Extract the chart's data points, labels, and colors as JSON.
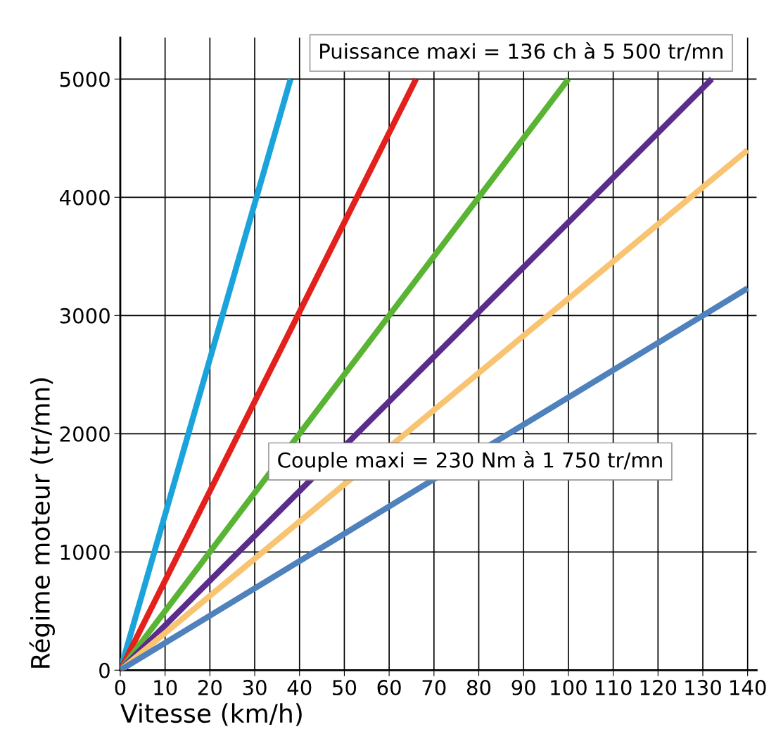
{
  "chart_data": {
    "type": "line",
    "xlabel": "Vitesse (km/h)",
    "ylabel": "Régime moteur (tr/mn)",
    "series": [
      {
        "color": "#1ba3dc",
        "x": [
          0,
          38
        ],
        "values": [
          0,
          5000
        ]
      },
      {
        "color": "#e3201b",
        "x": [
          0,
          66
        ],
        "values": [
          0,
          5000
        ]
      },
      {
        "color": "#5ab433",
        "x": [
          0,
          100
        ],
        "values": [
          0,
          5000
        ]
      },
      {
        "color": "#5b2c8c",
        "x": [
          0,
          132
        ],
        "values": [
          0,
          5000
        ]
      },
      {
        "color": "#f8c471",
        "x": [
          0,
          140
        ],
        "values": [
          0,
          4400
        ]
      },
      {
        "color": "#4f81bd",
        "x": [
          0,
          140
        ],
        "values": [
          0,
          3230
        ]
      }
    ],
    "annotations": [
      "Puissance maxi = 136 ch à 5 500 tr/mn",
      "Couple maxi = 230 Nm à 1 750 tr/mn"
    ],
    "xlim": [
      0,
      142
    ],
    "ylim": [
      0,
      5350
    ],
    "xticks": [
      0,
      10,
      20,
      30,
      40,
      50,
      60,
      70,
      80,
      90,
      100,
      110,
      120,
      130,
      140
    ],
    "yticks": [
      0,
      1000,
      2000,
      3000,
      4000,
      5000
    ],
    "grid": true,
    "marker": "none",
    "line_style": "solid",
    "legend": false
  }
}
